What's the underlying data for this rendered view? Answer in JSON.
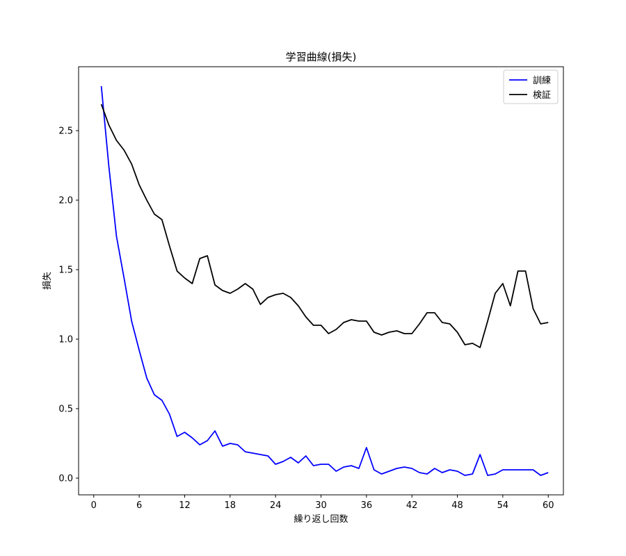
{
  "chart_data": {
    "type": "line",
    "title": "学習曲線(損失)",
    "xlabel": "繰り返し回数",
    "ylabel": "損失",
    "xlim": [
      -2,
      62
    ],
    "ylim": [
      -0.12,
      2.96
    ],
    "xticks": [
      0,
      6,
      12,
      18,
      24,
      30,
      36,
      42,
      48,
      54,
      60
    ],
    "yticks": [
      0.0,
      0.5,
      1.0,
      1.5,
      2.0,
      2.5
    ],
    "ytick_labels": [
      "0.0",
      "0.5",
      "1.0",
      "1.5",
      "2.0",
      "2.5"
    ],
    "grid": false,
    "legend_position": "top-right",
    "x": [
      1,
      2,
      3,
      4,
      5,
      6,
      7,
      8,
      9,
      10,
      11,
      12,
      13,
      14,
      15,
      16,
      17,
      18,
      19,
      20,
      21,
      22,
      23,
      24,
      25,
      26,
      27,
      28,
      29,
      30,
      31,
      32,
      33,
      34,
      35,
      36,
      37,
      38,
      39,
      40,
      41,
      42,
      43,
      44,
      45,
      46,
      47,
      48,
      49,
      50,
      51,
      52,
      53,
      54,
      55,
      56,
      57,
      58,
      59,
      60
    ],
    "series": [
      {
        "name": "訓練",
        "color": "#0000ff",
        "values": [
          2.82,
          2.24,
          1.74,
          1.44,
          1.13,
          0.92,
          0.72,
          0.6,
          0.56,
          0.46,
          0.3,
          0.33,
          0.29,
          0.24,
          0.27,
          0.34,
          0.23,
          0.25,
          0.24,
          0.19,
          0.18,
          0.17,
          0.16,
          0.1,
          0.12,
          0.15,
          0.11,
          0.16,
          0.09,
          0.1,
          0.1,
          0.05,
          0.08,
          0.09,
          0.07,
          0.22,
          0.06,
          0.03,
          0.05,
          0.07,
          0.08,
          0.07,
          0.04,
          0.03,
          0.07,
          0.04,
          0.06,
          0.05,
          0.02,
          0.03,
          0.17,
          0.02,
          0.03,
          0.06,
          0.06,
          0.06,
          0.06,
          0.06,
          0.02,
          0.04
        ]
      },
      {
        "name": "検証",
        "color": "#000000",
        "values": [
          2.69,
          2.54,
          2.43,
          2.36,
          2.26,
          2.11,
          2.0,
          1.9,
          1.86,
          1.67,
          1.49,
          1.44,
          1.4,
          1.58,
          1.6,
          1.39,
          1.35,
          1.33,
          1.36,
          1.4,
          1.36,
          1.25,
          1.3,
          1.32,
          1.33,
          1.3,
          1.24,
          1.16,
          1.1,
          1.1,
          1.04,
          1.07,
          1.12,
          1.14,
          1.13,
          1.13,
          1.05,
          1.03,
          1.05,
          1.06,
          1.04,
          1.04,
          1.11,
          1.19,
          1.19,
          1.12,
          1.11,
          1.05,
          0.96,
          0.97,
          0.94,
          1.13,
          1.33,
          1.4,
          1.24,
          1.49,
          1.49,
          1.22,
          1.11,
          1.12
        ]
      }
    ]
  }
}
